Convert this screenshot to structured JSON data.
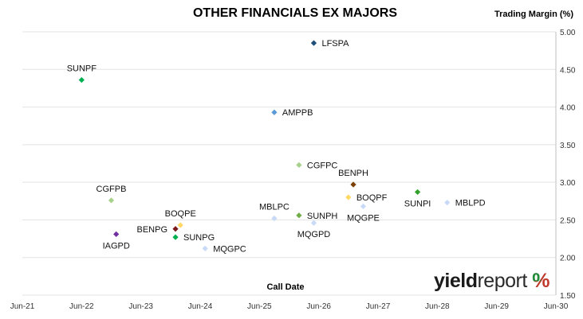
{
  "chart_data": {
    "type": "scatter",
    "title": "OTHER FINANCIALS EX MAJORS",
    "ylabel": "Trading Margin (%)",
    "xlabel": "Call Date",
    "ylim": [
      1.5,
      5.0
    ],
    "y_ticks": [
      "1.50",
      "2.00",
      "2.50",
      "3.00",
      "3.50",
      "4.00",
      "4.50",
      "5.00"
    ],
    "x_ticks": [
      "Jun-21",
      "Jun-22",
      "Jun-23",
      "Jun-24",
      "Jun-25",
      "Jun-26",
      "Jun-27",
      "Jun-28",
      "Jun-29",
      "Jun-30"
    ],
    "xlim": [
      "2021-06",
      "2030-06"
    ],
    "grid": "horizontal",
    "y_axis_side": "right",
    "points": [
      {
        "label": "SUNPF",
        "x": "2022-06",
        "y": 4.36,
        "color": "#00b050",
        "label_pos": "above"
      },
      {
        "label": "LFSPA",
        "x": "2026-05",
        "y": 4.85,
        "color": "#1f4e79",
        "label_pos": "right"
      },
      {
        "label": "AMPPB",
        "x": "2025-09",
        "y": 3.93,
        "color": "#5b9bd5",
        "label_pos": "right"
      },
      {
        "label": "CGFPC",
        "x": "2026-02",
        "y": 3.23,
        "color": "#a9d18e",
        "label_pos": "right"
      },
      {
        "label": "BENPH",
        "x": "2027-01",
        "y": 2.97,
        "color": "#7b3f00",
        "label_pos": "above"
      },
      {
        "label": "CGFPB",
        "x": "2022-12",
        "y": 2.76,
        "color": "#a9d18e",
        "label_pos": "above"
      },
      {
        "label": "SUNPI",
        "x": "2028-02",
        "y": 2.87,
        "color": "#33a02c",
        "label_pos": "below"
      },
      {
        "label": "BOQPF",
        "x": "2026-12",
        "y": 2.8,
        "color": "#ffd966",
        "label_pos": "right"
      },
      {
        "label": "MBLPD",
        "x": "2028-08",
        "y": 2.73,
        "color": "#c9daf8",
        "label_pos": "right"
      },
      {
        "label": "MQGPE",
        "x": "2027-03",
        "y": 2.68,
        "color": "#c9daf8",
        "label_pos": "below"
      },
      {
        "label": "SUNPH",
        "x": "2026-02",
        "y": 2.56,
        "color": "#70ad47",
        "label_pos": "right"
      },
      {
        "label": "MBLPC",
        "x": "2025-09",
        "y": 2.52,
        "color": "#c9daf8",
        "label_pos": "above"
      },
      {
        "label": "MQGPD",
        "x": "2026-05",
        "y": 2.46,
        "color": "#c9daf8",
        "label_pos": "below"
      },
      {
        "label": "BOQPE",
        "x": "2024-02",
        "y": 2.43,
        "color": "#ffd966",
        "label_pos": "above"
      },
      {
        "label": "BENPG",
        "x": "2024-01",
        "y": 2.38,
        "color": "#7b1a1a",
        "label_pos": "left"
      },
      {
        "label": "IAGPD",
        "x": "2023-01",
        "y": 2.31,
        "color": "#7030a0",
        "label_pos": "below"
      },
      {
        "label": "SUNPG",
        "x": "2024-01",
        "y": 2.27,
        "color": "#00b050",
        "label_pos": "right"
      },
      {
        "label": "MQGPC",
        "x": "2024-07",
        "y": 2.12,
        "color": "#c9daf8",
        "label_pos": "right"
      }
    ]
  },
  "logo": {
    "yield": "yield",
    "report": "report",
    "pct": "%"
  }
}
